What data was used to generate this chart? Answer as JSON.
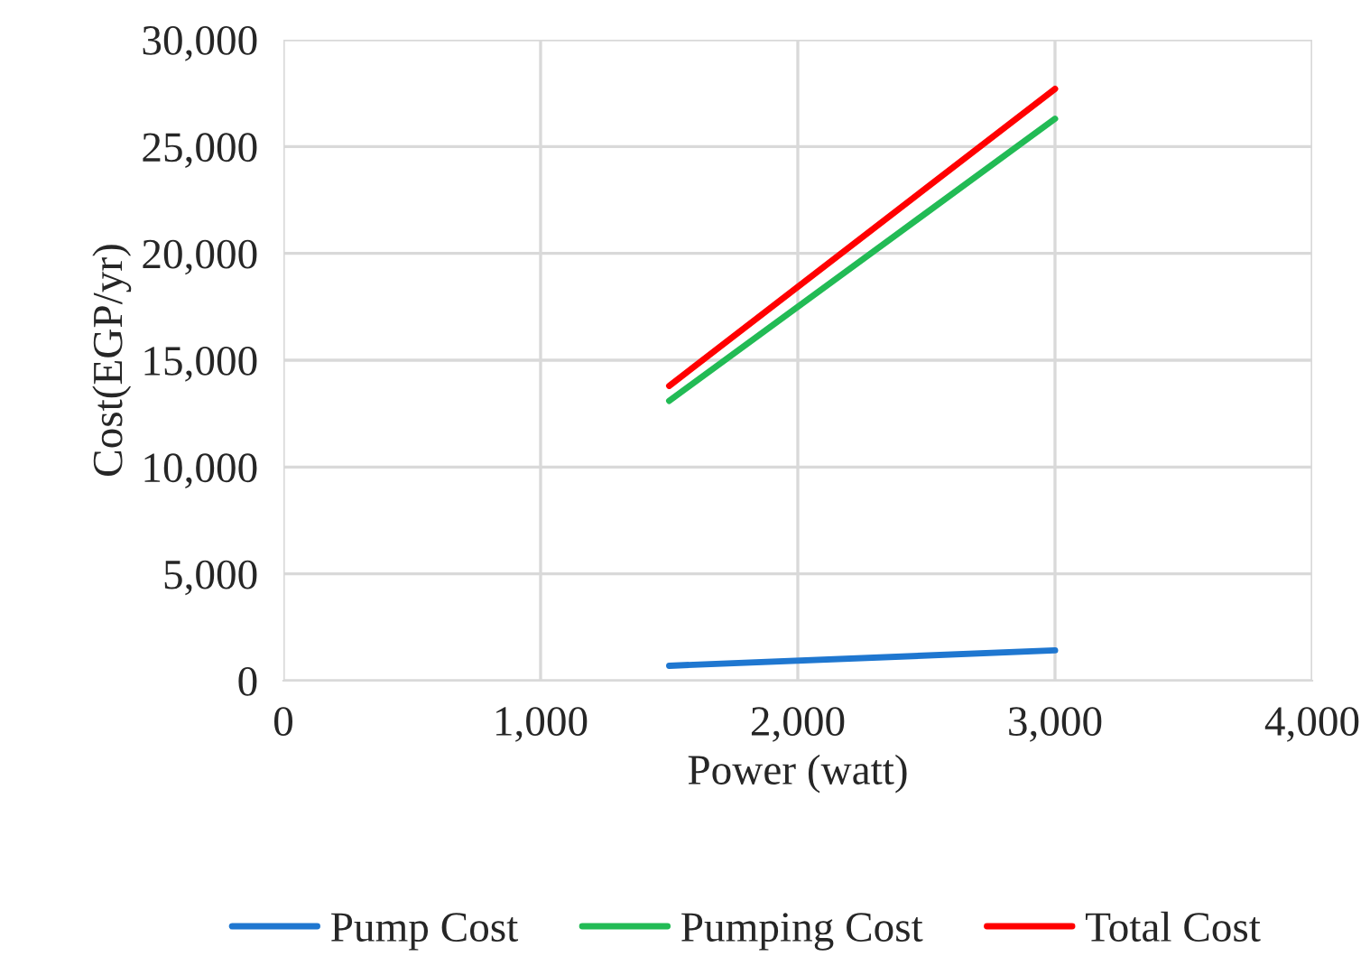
{
  "chart_data": {
    "type": "line",
    "xlabel": "Power (watt)",
    "ylabel": "Cost(EGP/yr)",
    "x": [
      1500,
      3000
    ],
    "series": [
      {
        "name": "Pump Cost",
        "color": "#1f77d0",
        "values": [
          700,
          1420
        ]
      },
      {
        "name": "Pumping Cost",
        "color": "#22bb55",
        "values": [
          13100,
          26300
        ]
      },
      {
        "name": "Total Cost",
        "color": "#ff0000",
        "values": [
          13800,
          27700
        ]
      }
    ],
    "xlim": [
      0,
      4000
    ],
    "xticks": [
      {
        "value": 0,
        "label": "0"
      },
      {
        "value": 1000,
        "label": "1,000"
      },
      {
        "value": 2000,
        "label": "2,000"
      },
      {
        "value": 3000,
        "label": "3,000"
      },
      {
        "value": 4000,
        "label": "4,000"
      }
    ],
    "ylim": [
      0,
      30000
    ],
    "yticks": [
      {
        "value": 0,
        "label": "0"
      },
      {
        "value": 5000,
        "label": "5,000"
      },
      {
        "value": 10000,
        "label": "10,000"
      },
      {
        "value": 15000,
        "label": "15,000"
      },
      {
        "value": 20000,
        "label": "20,000"
      },
      {
        "value": 25000,
        "label": "25,000"
      },
      {
        "value": 30000,
        "label": "30,000"
      }
    ],
    "grid": true,
    "legend": "bottom",
    "marker": "none",
    "line_style": "solid"
  }
}
